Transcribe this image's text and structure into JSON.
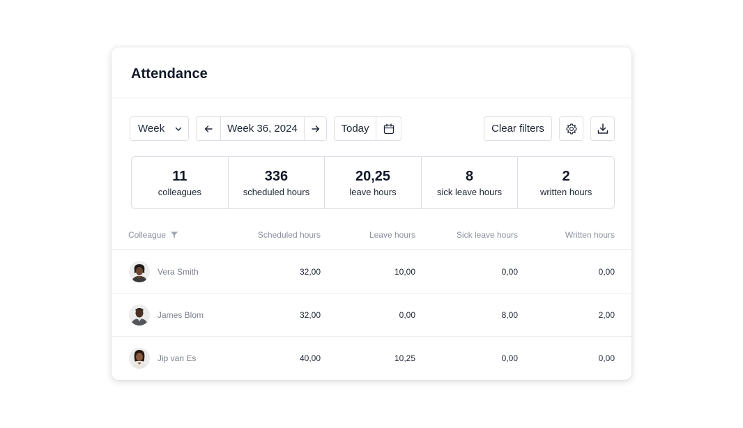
{
  "page": {
    "title": "Attendance"
  },
  "toolbar": {
    "period_select": "Week",
    "period_label": "Week 36, 2024",
    "today_label": "Today",
    "clear_filters_label": "Clear filters"
  },
  "stats": [
    {
      "value": "11",
      "label": "colleagues"
    },
    {
      "value": "336",
      "label": "scheduled hours"
    },
    {
      "value": "20,25",
      "label": "leave hours"
    },
    {
      "value": "8",
      "label": "sick leave hours"
    },
    {
      "value": "2",
      "label": "written hours"
    }
  ],
  "table": {
    "headers": {
      "colleague": "Colleague",
      "scheduled": "Scheduled hours",
      "leave": "Leave hours",
      "sick": "Sick leave hours",
      "written": "Written hours"
    },
    "rows": [
      {
        "name": "Vera Smith",
        "scheduled": "32,00",
        "leave": "10,00",
        "sick": "0,00",
        "written": "0,00"
      },
      {
        "name": "James Blom",
        "scheduled": "32,00",
        "leave": "0,00",
        "sick": "8,00",
        "written": "2,00"
      },
      {
        "name": "Jip van Es",
        "scheduled": "40,00",
        "leave": "10,25",
        "sick": "0,00",
        "written": "0,00"
      }
    ]
  },
  "colors": {
    "text": "#1d2433",
    "muted": "#8a909c",
    "border": "#dcdfe5"
  },
  "icons": [
    "chevron-down-icon",
    "arrow-left-icon",
    "arrow-right-icon",
    "calendar-icon",
    "gear-icon",
    "download-icon",
    "filter-icon"
  ]
}
